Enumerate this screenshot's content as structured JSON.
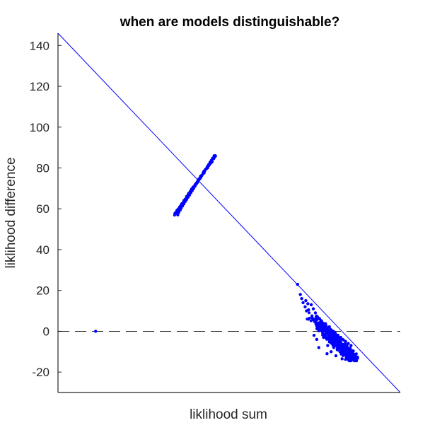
{
  "chart_data": {
    "type": "scatter",
    "title": "when are models distinguishable?",
    "xlabel": "liklihood sum",
    "ylabel": "liklihood difference",
    "x_ticks_shown": false,
    "xlim": [
      0,
      100
    ],
    "ylim": [
      -30,
      146
    ],
    "yticks": [
      -20,
      0,
      20,
      40,
      60,
      80,
      100,
      120,
      140
    ],
    "grid": false,
    "legend": "none",
    "colors": {
      "points": "#0000ff",
      "reference_line": "#0000ff",
      "zero_line": "#000000"
    },
    "reference_line": {
      "style": "solid",
      "points": [
        [
          0,
          146
        ],
        [
          100,
          -30
        ]
      ]
    },
    "zero_line": {
      "style": "dashed",
      "y": 0
    },
    "clusters": [
      {
        "name": "",
        "kind": "upper-diagonal-band",
        "x_range": [
          34,
          46
        ],
        "y_range": [
          57,
          86
        ],
        "approx_points": 120
      },
      {
        "name": "",
        "kind": "lower-right-cloud",
        "x_range": [
          70,
          87
        ],
        "y_range": [
          -14,
          23
        ],
        "approx_points": 450
      },
      {
        "name": "",
        "kind": "single-point",
        "x": 11,
        "y": 0
      }
    ],
    "series": [
      {
        "values": [
          [
            11,
            0
          ],
          [
            35.0,
            57
          ],
          [
            35.3,
            58.3
          ],
          [
            35.7,
            59.4
          ],
          [
            36.0,
            60.4
          ],
          [
            36.4,
            61.4
          ],
          [
            36.8,
            62.5
          ],
          [
            37.2,
            63.6
          ],
          [
            37.6,
            64.6
          ],
          [
            38.0,
            65.7
          ],
          [
            38.4,
            66.7
          ],
          [
            38.8,
            67.8
          ],
          [
            39.2,
            68.9
          ],
          [
            39.6,
            69.9
          ],
          [
            40.0,
            71.0
          ],
          [
            40.4,
            72.1
          ],
          [
            40.8,
            73.1
          ],
          [
            41.2,
            74.2
          ],
          [
            41.6,
            75.3
          ],
          [
            42.0,
            76.3
          ],
          [
            42.4,
            77.4
          ],
          [
            42.8,
            78.4
          ],
          [
            43.2,
            79.5
          ],
          [
            43.6,
            80.6
          ],
          [
            44.0,
            81.6
          ],
          [
            44.4,
            82.7
          ],
          [
            44.8,
            83.7
          ],
          [
            45.2,
            84.8
          ],
          [
            45.6,
            85.9
          ],
          [
            70.0,
            23
          ],
          [
            70.8,
            18
          ],
          [
            71.2,
            16
          ],
          [
            72.4,
            15
          ],
          [
            72.2,
            12
          ],
          [
            71.6,
            14
          ],
          [
            73.0,
            13.5
          ],
          [
            74.0,
            13
          ],
          [
            73.2,
            10.5
          ],
          [
            72.6,
            10
          ],
          [
            74.6,
            11
          ],
          [
            75.2,
            9
          ],
          [
            74.2,
            7.5
          ],
          [
            75.8,
            7
          ],
          [
            76.4,
            6
          ],
          [
            77.0,
            5
          ],
          [
            77.4,
            4
          ],
          [
            78.2,
            3
          ],
          [
            79.0,
            2
          ],
          [
            79.6,
            1
          ],
          [
            80.4,
            0
          ],
          [
            81.0,
            -1
          ],
          [
            81.8,
            -2
          ],
          [
            82.6,
            -3
          ],
          [
            83.2,
            -4
          ],
          [
            84.0,
            -5
          ],
          [
            84.8,
            -6
          ],
          [
            85.6,
            -7
          ],
          [
            76.0,
            1
          ],
          [
            77.2,
            0
          ],
          [
            78.0,
            -2
          ],
          [
            79.2,
            -4
          ],
          [
            80.0,
            -6
          ],
          [
            80.6,
            -8
          ],
          [
            81.6,
            -9
          ],
          [
            82.4,
            -10
          ],
          [
            83.4,
            -11
          ],
          [
            84.4,
            -12
          ],
          [
            85.4,
            -13
          ],
          [
            86.4,
            -14
          ],
          [
            78.8,
            -7
          ],
          [
            77.6,
            -3
          ],
          [
            76.2,
            -8
          ],
          [
            79.8,
            -10
          ],
          [
            81.2,
            -12
          ],
          [
            83.0,
            -13.5
          ],
          [
            85.0,
            -14
          ],
          [
            74.8,
            -2
          ],
          [
            75.6,
            -4
          ],
          [
            78.6,
            -11
          ],
          [
            82.0,
            -6
          ],
          [
            80.8,
            -3
          ],
          [
            86.0,
            -10
          ],
          [
            87.0,
            -13
          ]
        ]
      }
    ]
  }
}
